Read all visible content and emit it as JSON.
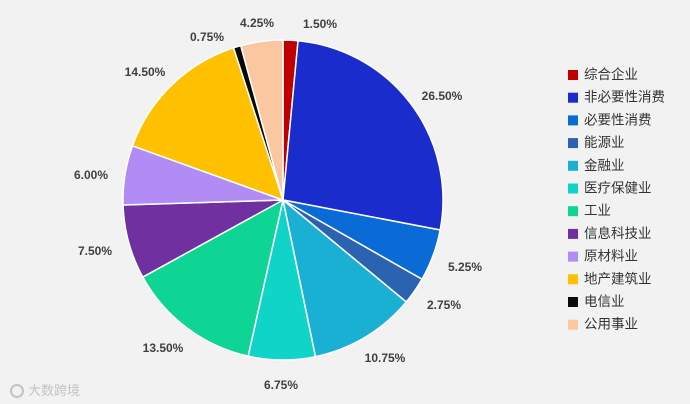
{
  "chart_data": {
    "type": "pie",
    "title": "",
    "start_angle_deg": 0,
    "direction": "clockwise",
    "legend_position": "right",
    "slices": [
      {
        "label": "综合企业",
        "value": 1.5,
        "display": "1.50%",
        "color": "#c00000"
      },
      {
        "label": "非必要性消费",
        "value": 26.5,
        "display": "26.50%",
        "color": "#1a2ccc"
      },
      {
        "label": "必要性消费",
        "value": 5.25,
        "display": "5.25%",
        "color": "#0a6ad6"
      },
      {
        "label": "能源业",
        "value": 2.75,
        "display": "2.75%",
        "color": "#2b63b0"
      },
      {
        "label": "金融业",
        "value": 10.75,
        "display": "10.75%",
        "color": "#1ab0d4"
      },
      {
        "label": "医疗保健业",
        "value": 6.75,
        "display": "6.75%",
        "color": "#11d4c8"
      },
      {
        "label": "工业",
        "value": 13.5,
        "display": "13.50%",
        "color": "#0ed494"
      },
      {
        "label": "信息科技业",
        "value": 7.5,
        "display": "7.50%",
        "color": "#7030a0"
      },
      {
        "label": "原材料业",
        "value": 6.0,
        "display": "6.00%",
        "color": "#b18cf5"
      },
      {
        "label": "地产建筑业",
        "value": 14.5,
        "display": "14.50%",
        "color": "#ffc000"
      },
      {
        "label": "电信业",
        "value": 0.75,
        "display": "0.75%",
        "color": "#0a0a0a"
      },
      {
        "label": "公用事业",
        "value": 4.25,
        "display": "4.25%",
        "color": "#fbc7a0"
      }
    ]
  },
  "watermark": {
    "text": "大数跨境"
  }
}
